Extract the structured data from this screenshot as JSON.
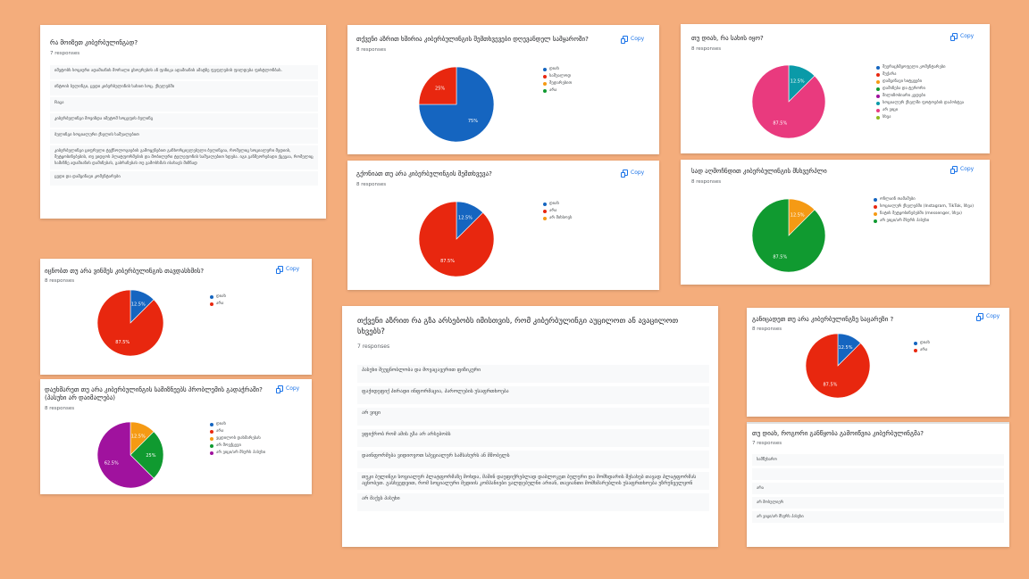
{
  "copy_label": "Copy",
  "colors": {
    "blue": "#1565c0",
    "red": "#e8270f",
    "orange": "#f59a14",
    "green": "#109a30",
    "purple": "#a0129e",
    "teal": "#0a9aa8",
    "pink": "#e93a7e",
    "lime": "#8fb81e"
  },
  "card1": {
    "title": "რა მოიზეთ კიბერბულინგად?",
    "responses": "7 responses",
    "answers": [
      "იმეტობს სოციური ადამიანის მორალი ცხოვრების ან ფიზიკა ადამიანის ამატზე ფეფლების ფილდება ფისტლონბას.",
      "ინტოის ბულინგი, ცუდი კიბერბულინის სახით სოც. ქსელებში",
      "Rაცა",
      "კიბერბულინგი მოვიზდა იმეტომ სოცეფის ბულინგ",
      "ბულინგი სოციალური ქსელის საშუალებით",
      "კიბერბულინგი ციფრული ტექნოლოგიების გამოყენებით განხორციელებული ბულინგია, რომელიც სოციალური მედიის, შეტყობინებების, თუ ვიდეოს პლატფორმების და მობილური ტელეფონის საშუალებით ხდება. იგი განმეორებადი ქცევაა, რომელიც სამიზნე ადამიანის დაშინებას, გაბრაზებას თუ გამოსხმას ისახავს მიზნად",
      "ცუდი და დამცინავი კომენტარები"
    ]
  },
  "card2": {
    "title": "თქვენი აზრით ხშირია კიბერბულინგის შემთხვევები დღევანდელ სამყაროში?",
    "responses": "8 responses",
    "legend": [
      "დიახ",
      "საშუალოდ",
      "შედარებით",
      "არა"
    ],
    "chart_data": {
      "type": "pie",
      "categories": [
        "დიახ",
        "საშუალოდ",
        "შედარებით",
        "არა"
      ],
      "values": [
        75,
        25,
        0,
        0
      ],
      "labels": [
        "75%",
        "25%",
        "",
        ""
      ],
      "colors": [
        "#1565c0",
        "#e8270f",
        "#f59a14",
        "#109a30"
      ]
    }
  },
  "card3": {
    "title": "გქონიათ თუ არა კიბერბულინგის შემთხვევა?",
    "responses": "8 responses",
    "legend": [
      "დიახ",
      "არა",
      "არ მიხსოვს"
    ],
    "chart_data": {
      "type": "pie",
      "categories": [
        "დიახ",
        "არა",
        "არ მიხსოვს"
      ],
      "values": [
        12.5,
        87.5,
        0
      ],
      "labels": [
        "12.5%",
        "87.5%",
        ""
      ],
      "colors": [
        "#1565c0",
        "#e8270f",
        "#f59a14"
      ]
    }
  },
  "card4": {
    "title": "თუ დიახ, რა სახის იყო?",
    "responses": "8 responses",
    "legend": [
      "შეურაცხმყოფელი კომენტარები",
      "მუქარა",
      "დამცინავი სიტყვები",
      "დაშინება და ტერორი",
      "შილიზობიარი კედები",
      "სოციალურ ქსელში ფოტოების დაპოსტვა",
      "არ ვიცი",
      "სხვა"
    ],
    "chart_data": {
      "type": "pie",
      "categories": [
        "შეურაცხმყოფელი კომენტარები",
        "მუქარა",
        "დამცინავი სიტყვები",
        "დაშინება და ტერორი",
        "შილიზობიარი კედები",
        "სოციალურ ქსელში ფოტოების დაპოსტვა",
        "არ ვიცი",
        "სხვა"
      ],
      "values": [
        0,
        0,
        0,
        0,
        0,
        12.5,
        87.5,
        0
      ],
      "labels": [
        "",
        "",
        "",
        "",
        "",
        "12.5%",
        "87.5%",
        ""
      ],
      "colors": [
        "#1565c0",
        "#e8270f",
        "#f59a14",
        "#109a30",
        "#a0129e",
        "#0a9aa8",
        "#e93a7e",
        "#8fb81e"
      ]
    }
  },
  "card5": {
    "title": "სად აღმოჩნდით კიბერბულინგის მსხვერპლი",
    "responses": "8 responses",
    "legend": [
      "ონლაინ თამაშები",
      "სოციალურ ქსელებში (Instagram, TikTok, სხვა)",
      "ჩატის შეტყობინებებში (messenger, სხვა)",
      "არ ვიცი/არ მსურს პასუხი"
    ],
    "chart_data": {
      "type": "pie",
      "categories": [
        "ონლაინ თამაშები",
        "სოციალურ ქსელებში (Instagram, TikTok, სხვა)",
        "ჩატის შეტყობინებებში (messenger, სხვა)",
        "არ ვიცი/არ მსურს პასუხი"
      ],
      "values": [
        0,
        0,
        12.5,
        87.5
      ],
      "labels": [
        "",
        "",
        "12.5%",
        "87.5%"
      ],
      "colors": [
        "#1565c0",
        "#e8270f",
        "#f59a14",
        "#109a30"
      ]
    }
  },
  "card6": {
    "title": "იცნობთ თუ არა ვინმეს კიბერბულინგის თავდასხმის?",
    "responses": "8 responses",
    "legend": [
      "დიახ",
      "არა"
    ],
    "chart_data": {
      "type": "pie",
      "categories": [
        "დიახ",
        "არა"
      ],
      "values": [
        12.5,
        87.5
      ],
      "labels": [
        "12.5%",
        "87.5%"
      ],
      "colors": [
        "#1565c0",
        "#e8270f"
      ]
    }
  },
  "card7": {
    "title": "დაეხმარეთ თუ არა კიბერბულინგის სამიზნეებს პრობლემის გადაჭრაში? (პასუხი არ დაიმალება)",
    "responses": "8 responses",
    "legend": [
      "დიახ",
      "არა",
      "ვცდილობ დახმარებას",
      "არ მოვქცევი",
      "არ ვიცი/არ მსურს პასუხი"
    ],
    "chart_data": {
      "type": "pie",
      "categories": [
        "დიახ",
        "არა",
        "ვცდილობ დახმარებას",
        "არ მოვქცევი",
        "არ ვიცი/არ მსურს პასუხი"
      ],
      "values": [
        0,
        0,
        12.5,
        25,
        62.5
      ],
      "labels": [
        "",
        "",
        "12.5%",
        "25%",
        "62.5%"
      ],
      "colors": [
        "#1565c0",
        "#e8270f",
        "#f59a14",
        "#109a30",
        "#a0129e"
      ]
    }
  },
  "card8": {
    "title": "თქვენი აზრით რა გზა არსებობს იმისთვის, რომ კიბერბულინგი აუცილოთ ან ავაცილოთ სხვებს?",
    "responses": "7 responses",
    "answers": [
      "პასუხი შეუცნობლობა და მოვაცავერით ფიზიკური",
      "ფაქიდეფიქ პირადი ინფორმაცია, პაროლების უსაფრთხოება",
      "არ ვიცი",
      "ვფიქრობ რომ ამის გზა არ არსებობს",
      "დაინფორმება ვიდიოვოთ სპეციალურ სამსახურს ან მშობელს",
      "თუკი ბულინგი სოციალურ პლატფორმაზე მოხდა, მაშინ დაუფიქრებლად დაბლოკეთ ბულერი და მომხდარის შესახებ თავად პლატფორმას აცნობეთ. გასხვედვით, რომ სოციალური მედიის კომპანიები ვალდებულნი არიან, თავიანთი მომხმარებლის უსაფრთხოება უზრუნველყონ",
      "არ მაქვს პასუხი"
    ]
  },
  "card9": {
    "title": "განიცადეთ თუ არა კიბერბულინგზე საცარეზი ?",
    "responses": "8 responses",
    "legend": [
      "დიახ",
      "არა"
    ],
    "chart_data": {
      "type": "pie",
      "categories": [
        "დიახ",
        "არა"
      ],
      "values": [
        12.5,
        87.5
      ],
      "labels": [
        "12.5%",
        "87.5%"
      ],
      "colors": [
        "#1565c0",
        "#e8270f"
      ]
    }
  },
  "card10": {
    "title": "თუ დიახ, როგორი განწყობა გამოიწვია კიბერბულინგმა?",
    "responses": "7 responses",
    "answers": [
      "სამწუხარო",
      "",
      "არა",
      "არ მოსულიერ",
      "არ ვიცი/არ მსურს პასუხი"
    ]
  }
}
